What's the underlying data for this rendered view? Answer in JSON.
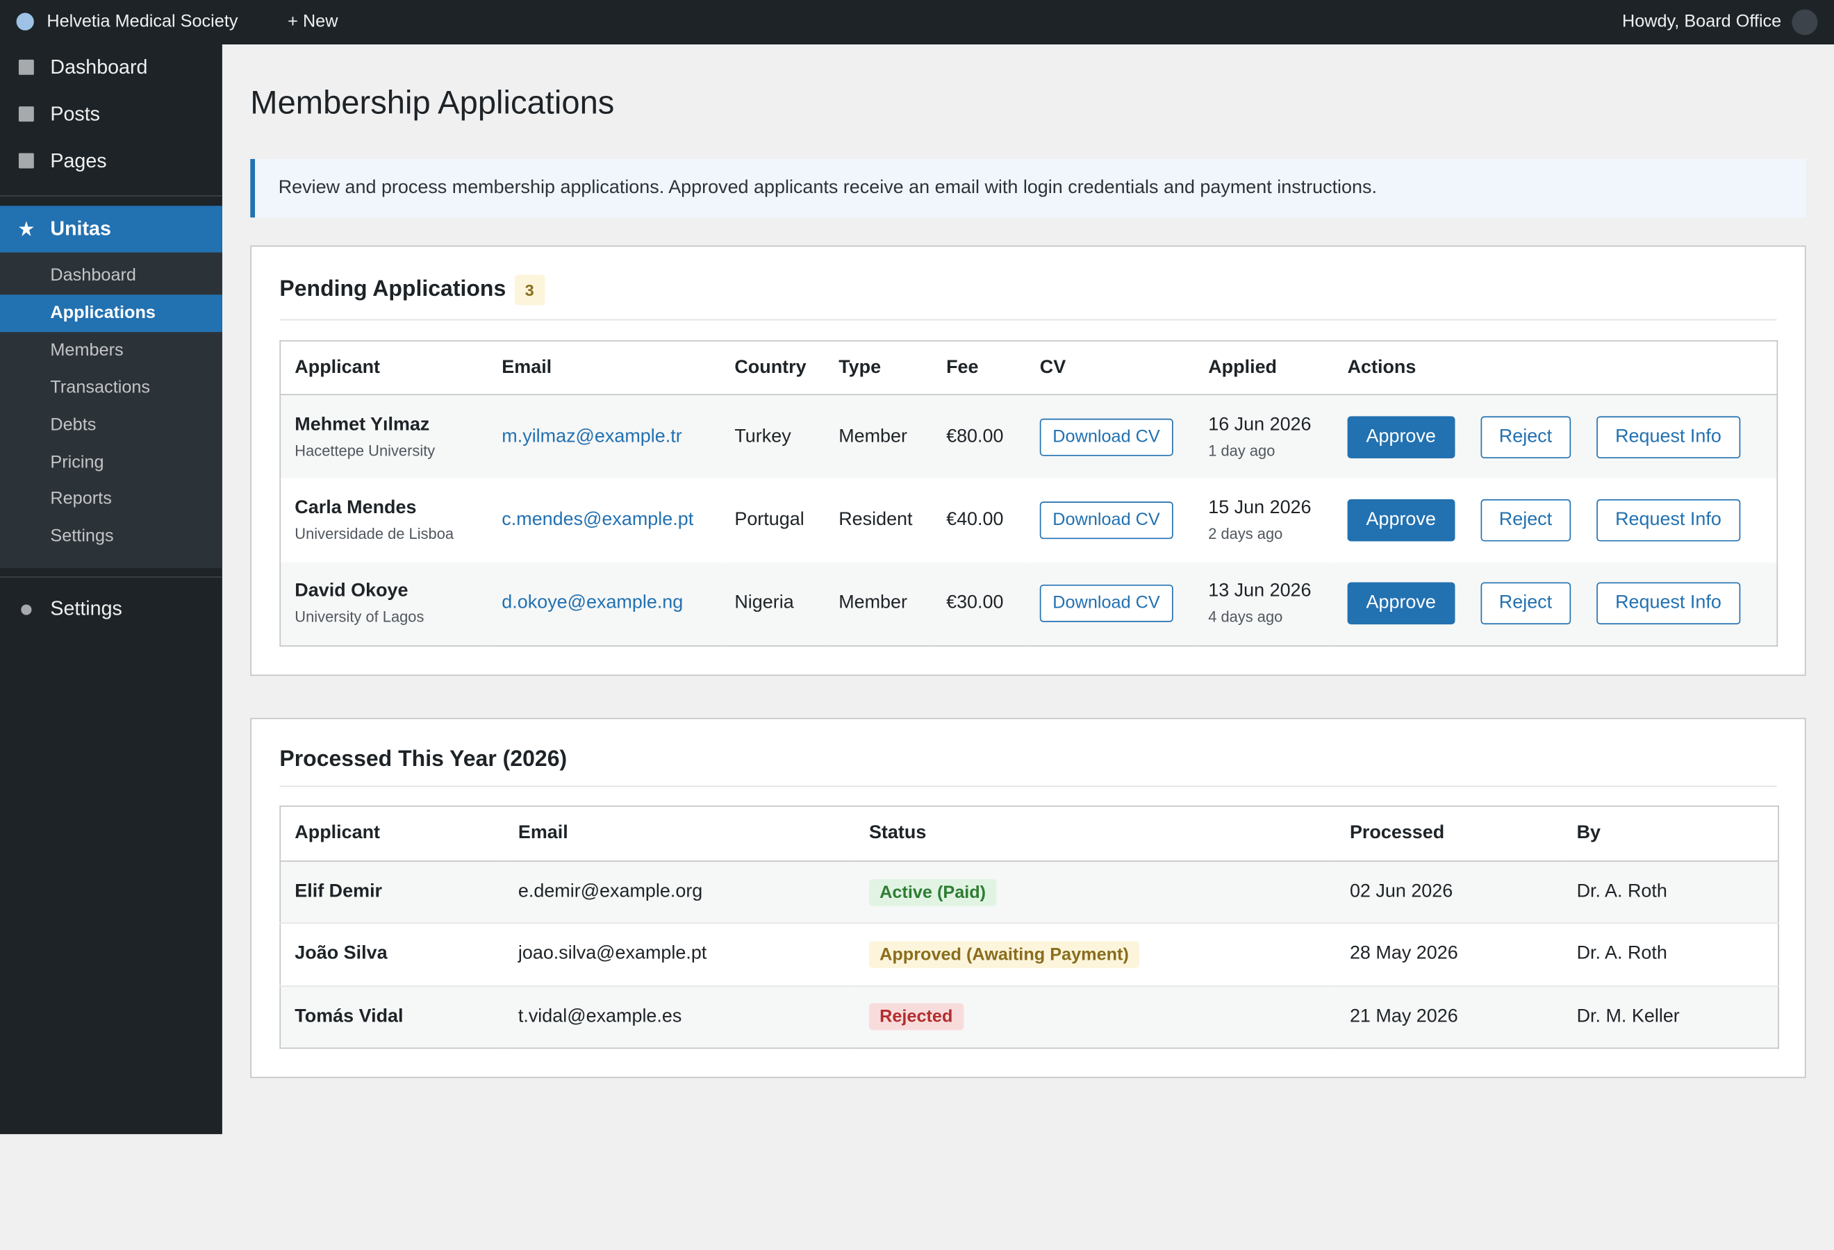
{
  "admin_bar": {
    "site": "Helvetia Medical Society",
    "new": "+ New",
    "greeting": "Howdy, Board Office"
  },
  "sidebar": {
    "menu": [
      "Dashboard",
      "Posts",
      "Pages"
    ],
    "active": "Unitas",
    "submenu": [
      "Dashboard",
      "Applications",
      "Members",
      "Transactions",
      "Debts",
      "Pricing",
      "Reports",
      "Settings"
    ],
    "bottom": "Settings"
  },
  "page": {
    "title": "Membership Applications",
    "notice": "Review and process membership applications. Approved applicants receive an email with login credentials and payment instructions."
  },
  "pending": {
    "title": "Pending Applications",
    "count": 3,
    "columns": [
      "Applicant",
      "Email",
      "Country",
      "Type",
      "Fee",
      "CV",
      "Applied",
      "Actions"
    ],
    "rows": [
      {
        "name": "Mehmet Yılmaz",
        "affiliation": "Hacettepe University",
        "email": "m.yilmaz@example.tr",
        "country": "Turkey",
        "type": "Member",
        "fee": "€80.00",
        "cv": "Download CV",
        "date": "16 Jun 2026",
        "ago": "1 day ago",
        "actions": [
          "Approve",
          "Reject",
          "Request Info"
        ]
      },
      {
        "name": "Carla Mendes",
        "affiliation": "Universidade de Lisboa",
        "email": "c.mendes@example.pt",
        "country": "Portugal",
        "type": "Resident",
        "fee": "€40.00",
        "cv": "Download CV",
        "date": "15 Jun 2026",
        "ago": "2 days ago",
        "actions": [
          "Approve",
          "Reject",
          "Request Info"
        ]
      },
      {
        "name": "David Okoye",
        "affiliation": "University of Lagos",
        "email": "d.okoye@example.ng",
        "country": "Nigeria",
        "type": "Member",
        "fee": "€30.00",
        "cv": "Download CV",
        "date": "13 Jun 2026",
        "ago": "4 days ago",
        "actions": [
          "Approve",
          "Reject",
          "Request Info"
        ]
      }
    ]
  },
  "processed": {
    "title": "Processed This Year (2026)",
    "columns": [
      "Applicant",
      "Email",
      "Status",
      "Processed",
      "By"
    ],
    "rows": [
      {
        "name": "Elif Demir",
        "email": "e.demir@example.org",
        "status": "Active (Paid)",
        "processed": "02 Jun 2026",
        "by": "Dr. A. Roth"
      },
      {
        "name": "João Silva",
        "email": "joao.silva@example.pt",
        "status": "Approved (Awaiting Payment)",
        "processed": "28 May 2026",
        "by": "Dr. A. Roth"
      },
      {
        "name": "Tomás Vidal",
        "email": "t.vidal@example.es",
        "status": "Rejected",
        "processed": "21 May 2026",
        "by": "Dr. M. Keller"
      }
    ]
  }
}
